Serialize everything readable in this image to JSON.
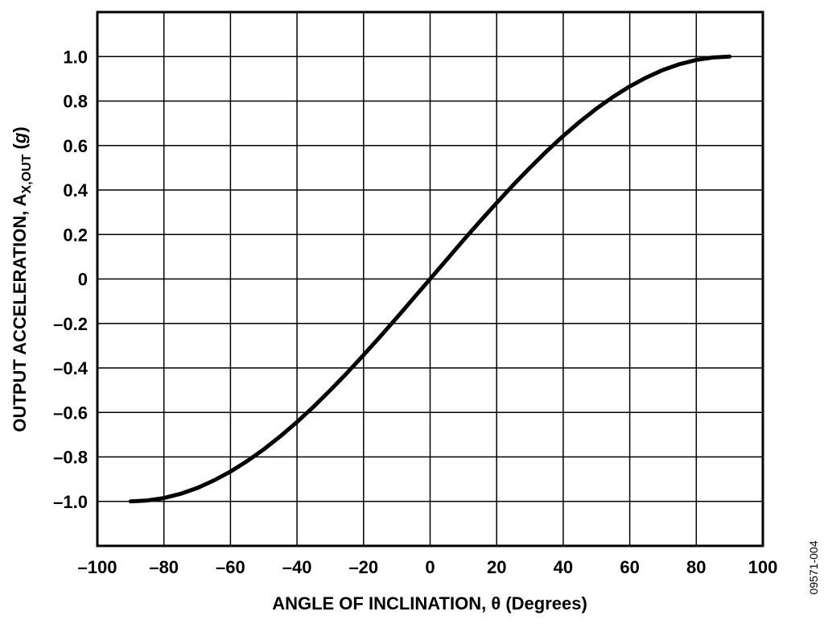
{
  "chart_data": {
    "type": "line",
    "title": "",
    "xlabel": "ANGLE OF INCLINATION, θ (Degrees)",
    "ylabel": {
      "main": "OUTPUT ACCELERATION, A",
      "subscript": "X,OUT",
      "unit_open": " (",
      "unit": "g",
      "unit_close": ")"
    },
    "xlim": [
      -100,
      100
    ],
    "ylim": [
      -1.2,
      1.2
    ],
    "grid": true,
    "x_ticks": [
      -100,
      -80,
      -60,
      -40,
      -20,
      0,
      20,
      40,
      60,
      80,
      100
    ],
    "x_tick_labels": [
      "–100",
      "–80",
      "–60",
      "–40",
      "–20",
      "0",
      "20",
      "40",
      "60",
      "80",
      "100"
    ],
    "y_ticks": [
      1.0,
      0.8,
      0.6,
      0.4,
      0.2,
      0,
      -0.2,
      -0.4,
      -0.6,
      -0.8,
      -1.0
    ],
    "y_tick_labels": [
      "1.0",
      "0.8",
      "0.6",
      "0.4",
      "0.2",
      "0",
      "–0.2",
      "–0.4",
      "–0.6",
      "–0.8",
      "–1.0"
    ],
    "series": [
      {
        "x": [
          -90,
          -85,
          -80,
          -75,
          -70,
          -65,
          -60,
          -55,
          -50,
          -45,
          -40,
          -35,
          -30,
          -25,
          -20,
          -15,
          -10,
          -5,
          0,
          5,
          10,
          15,
          20,
          25,
          30,
          35,
          40,
          45,
          50,
          55,
          60,
          65,
          70,
          75,
          80,
          85,
          90
        ],
        "y": [
          -1.0,
          -0.996,
          -0.985,
          -0.966,
          -0.94,
          -0.906,
          -0.866,
          -0.819,
          -0.766,
          -0.707,
          -0.643,
          -0.574,
          -0.5,
          -0.423,
          -0.342,
          -0.259,
          -0.174,
          -0.087,
          0,
          0.087,
          0.174,
          0.259,
          0.342,
          0.423,
          0.5,
          0.574,
          0.643,
          0.707,
          0.766,
          0.819,
          0.866,
          0.906,
          0.94,
          0.966,
          0.985,
          0.996,
          1.0
        ],
        "color": "#000000"
      }
    ]
  },
  "figure_id": "09571-004"
}
